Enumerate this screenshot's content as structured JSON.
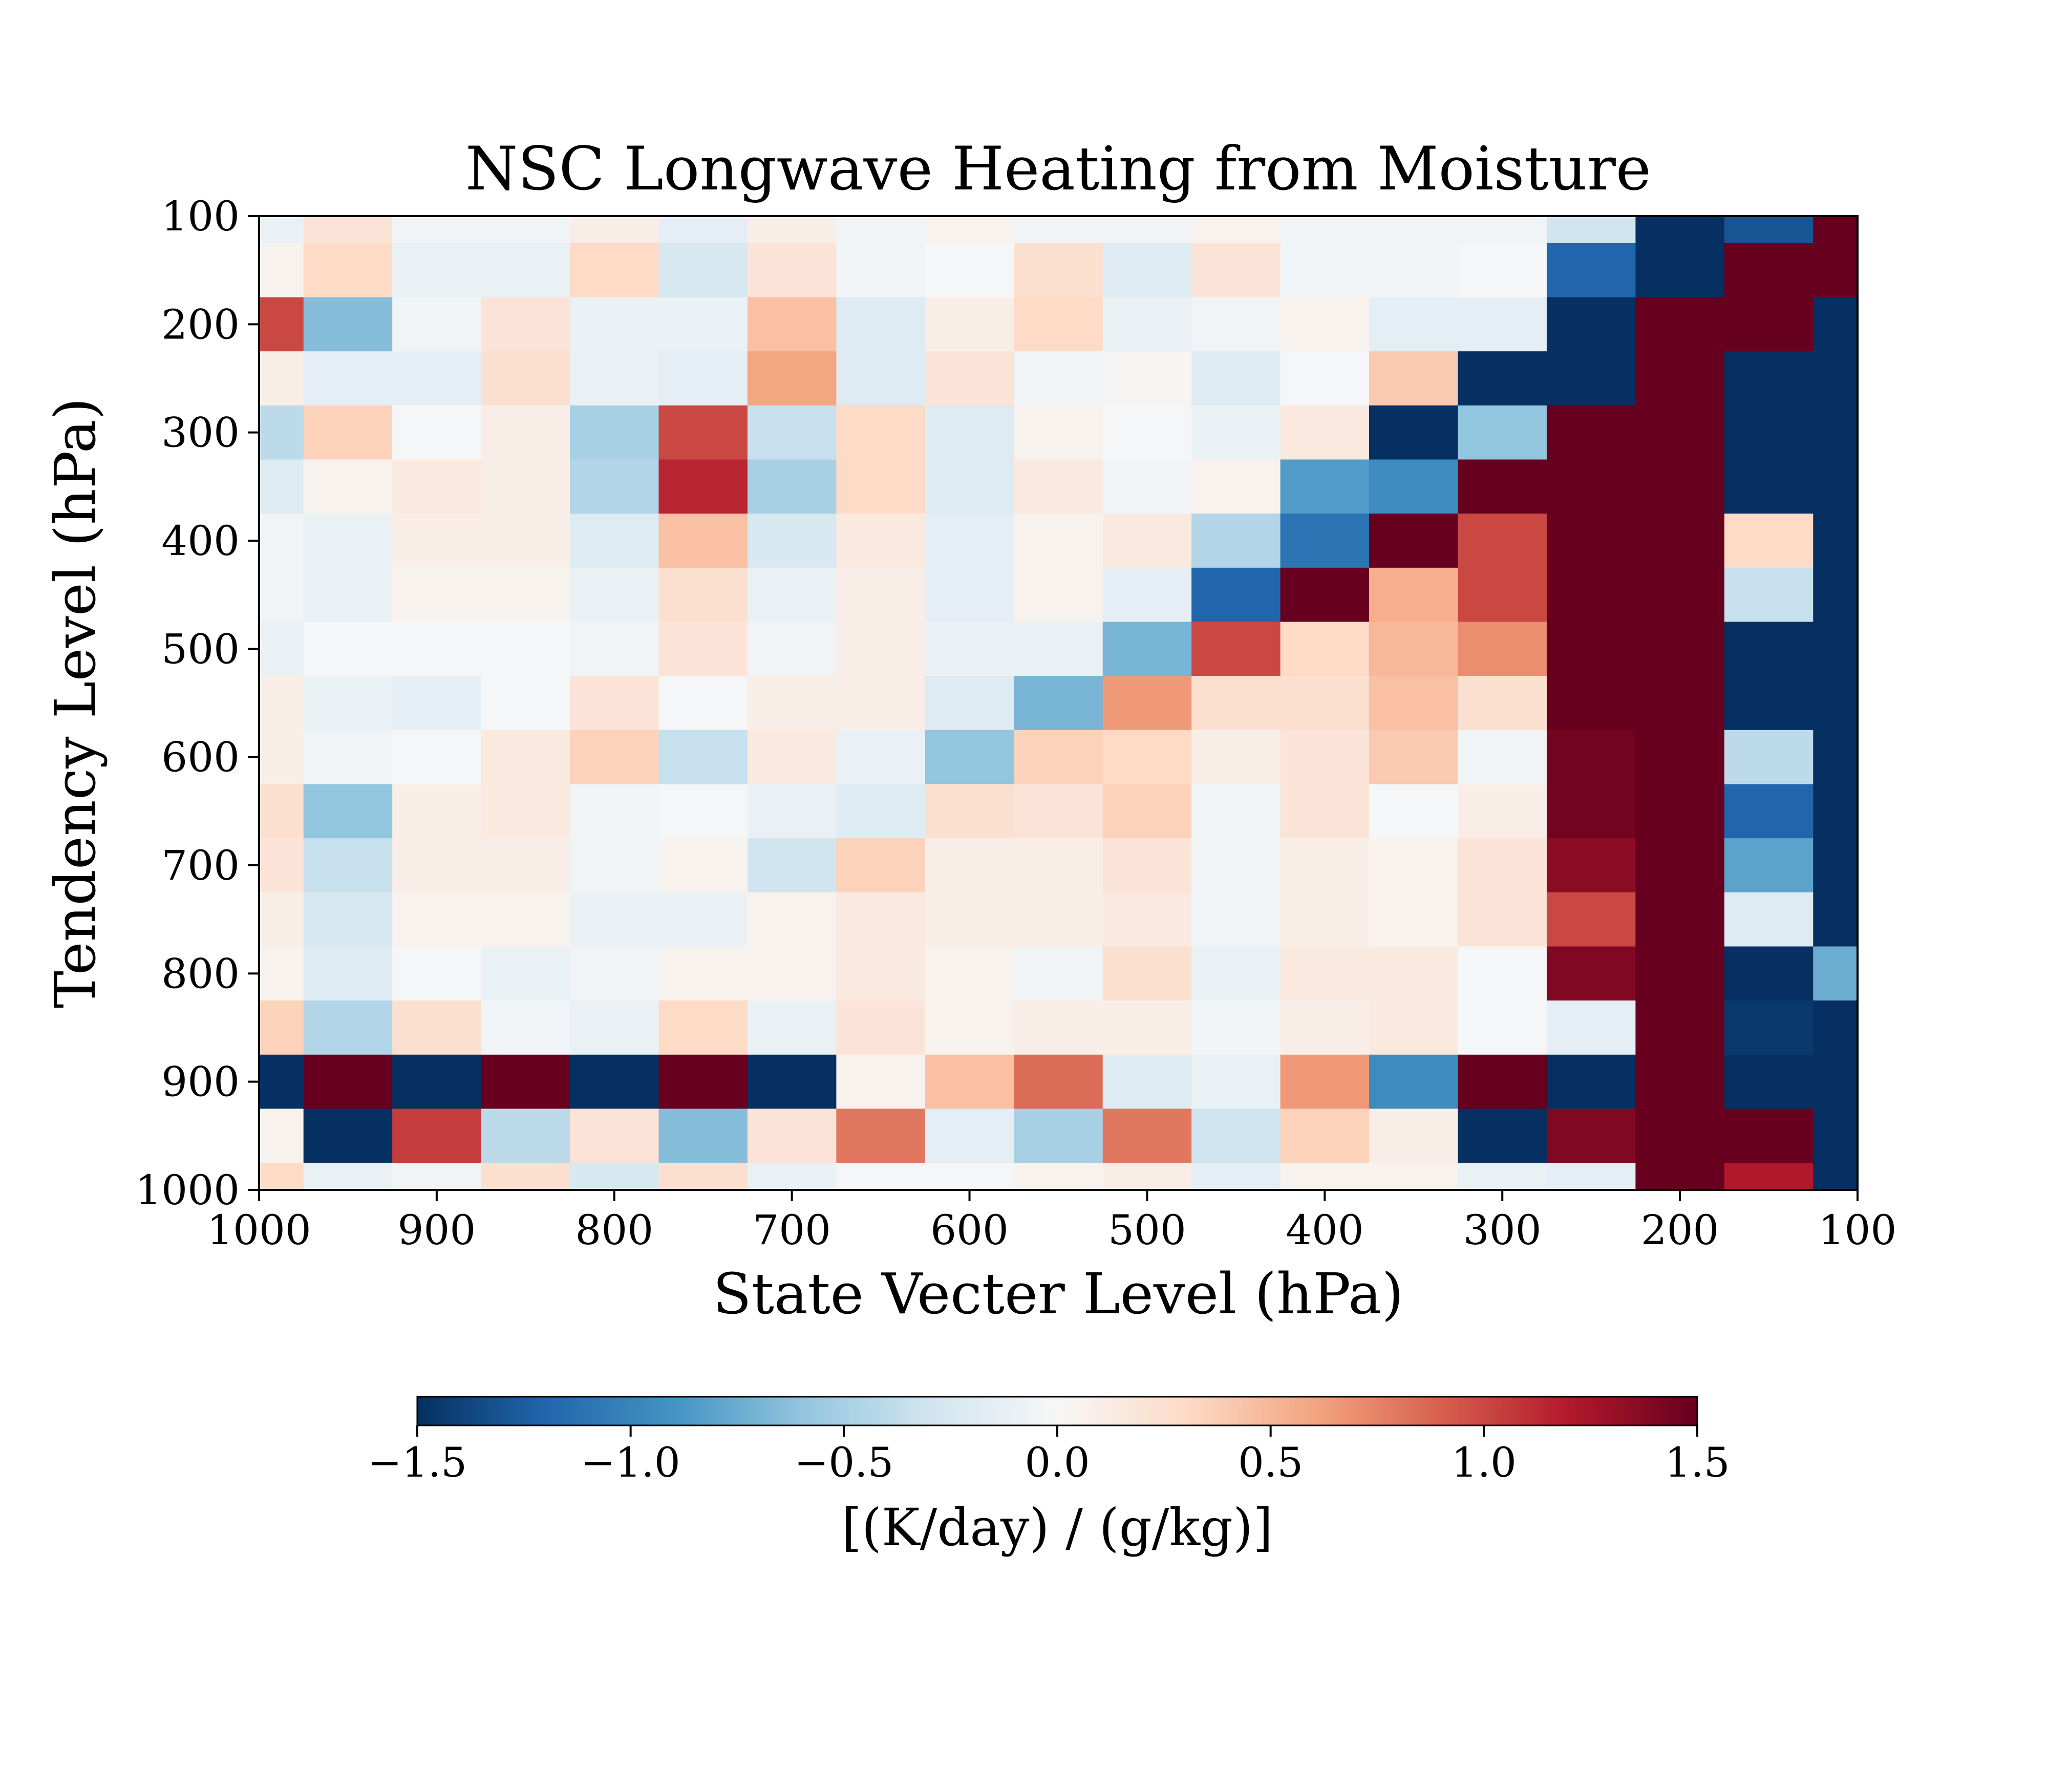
{
  "chart_data": {
    "type": "heatmap",
    "title": "NSC Longwave Heating from Moisture",
    "xlabel": "State Vecter Level (hPa)",
    "ylabel": "Tendency Level (hPa)",
    "x_ticks": [
      "1000",
      "900",
      "800",
      "700",
      "600",
      "500",
      "400",
      "300",
      "200",
      "100"
    ],
    "y_ticks": [
      "100",
      "200",
      "300",
      "400",
      "500",
      "600",
      "700",
      "800",
      "900",
      "1000"
    ],
    "xlim": [
      1000,
      100
    ],
    "ylim": [
      1000,
      100
    ],
    "colorbar": {
      "label": "[(K/day) / (g/kg)]",
      "range": [
        -1.5,
        1.5
      ],
      "ticks": [
        "−1.5",
        "−1.0",
        "−0.5",
        "0.0",
        "0.5",
        "1.0",
        "1.5"
      ],
      "colormap": "RdBu_r",
      "orientation": "horizontal"
    },
    "x_levels": [
      1000,
      950,
      900,
      850,
      800,
      750,
      700,
      650,
      600,
      550,
      500,
      450,
      400,
      350,
      300,
      250,
      200,
      150,
      100
    ],
    "y_levels": [
      100,
      150,
      200,
      250,
      300,
      350,
      400,
      450,
      500,
      550,
      600,
      650,
      700,
      750,
      800,
      850,
      900,
      950,
      1000
    ],
    "z": [
      [
        -0.1,
        0.2,
        -0.05,
        -0.05,
        0.1,
        -0.15,
        0.1,
        -0.05,
        0.05,
        -0.05,
        -0.05,
        0.05,
        -0.05,
        -0.05,
        -0.05,
        -0.3,
        -1.5,
        -1.3,
        1.5
      ],
      [
        0.05,
        0.3,
        -0.1,
        -0.1,
        0.3,
        -0.25,
        0.2,
        -0.05,
        -0.02,
        0.25,
        -0.2,
        0.2,
        -0.05,
        -0.05,
        -0.02,
        -1.2,
        -1.5,
        1.5,
        1.5
      ],
      [
        1.0,
        -0.65,
        -0.05,
        0.2,
        -0.1,
        -0.1,
        0.45,
        -0.2,
        0.1,
        0.3,
        -0.1,
        -0.05,
        0.05,
        -0.15,
        -0.15,
        -1.5,
        1.5,
        1.5,
        -1.5
      ],
      [
        0.1,
        -0.15,
        -0.15,
        0.25,
        -0.1,
        -0.15,
        0.6,
        -0.2,
        0.2,
        -0.05,
        0.02,
        -0.2,
        -0.02,
        0.4,
        -1.5,
        -1.5,
        1.5,
        -1.5,
        -1.5
      ],
      [
        -0.4,
        0.35,
        -0.02,
        0.1,
        -0.5,
        1.0,
        -0.35,
        0.3,
        -0.2,
        0.05,
        -0.02,
        -0.1,
        0.15,
        -1.5,
        -0.6,
        1.5,
        1.5,
        -1.5,
        -1.5
      ],
      [
        -0.2,
        0.05,
        0.15,
        0.1,
        -0.45,
        1.15,
        -0.5,
        0.3,
        -0.2,
        0.15,
        -0.05,
        0.05,
        -0.85,
        -0.95,
        1.5,
        1.5,
        1.5,
        -1.5,
        -1.5
      ],
      [
        -0.05,
        -0.1,
        0.1,
        0.1,
        -0.2,
        0.45,
        -0.25,
        0.15,
        -0.15,
        0.05,
        0.15,
        -0.45,
        -1.1,
        1.5,
        1.0,
        1.5,
        1.5,
        0.3,
        -1.5
      ],
      [
        -0.05,
        -0.1,
        0.05,
        0.05,
        -0.1,
        0.25,
        -0.1,
        0.1,
        -0.15,
        0.05,
        -0.15,
        -1.2,
        1.5,
        0.55,
        1.0,
        1.5,
        1.5,
        -0.35,
        -1.5
      ],
      [
        -0.1,
        -0.02,
        -0.02,
        -0.02,
        -0.05,
        0.2,
        -0.05,
        0.1,
        -0.1,
        -0.1,
        -0.7,
        1.0,
        0.3,
        0.5,
        0.7,
        1.5,
        1.5,
        -1.5,
        -1.5
      ],
      [
        0.1,
        -0.1,
        -0.15,
        -0.02,
        0.2,
        -0.02,
        0.1,
        0.1,
        -0.2,
        -0.7,
        0.65,
        0.25,
        0.25,
        0.45,
        0.25,
        1.5,
        1.5,
        -1.5,
        -1.5
      ],
      [
        0.1,
        -0.05,
        -0.02,
        0.15,
        0.35,
        -0.35,
        0.15,
        -0.1,
        -0.6,
        0.35,
        0.3,
        0.1,
        0.2,
        0.4,
        -0.05,
        1.45,
        1.5,
        -0.4,
        -1.5
      ],
      [
        0.25,
        -0.6,
        0.1,
        0.15,
        -0.05,
        -0.02,
        -0.1,
        -0.2,
        0.25,
        0.2,
        0.35,
        -0.05,
        0.2,
        -0.02,
        0.1,
        1.45,
        1.5,
        -1.2,
        -1.5
      ],
      [
        0.2,
        -0.35,
        0.1,
        0.1,
        -0.05,
        0.05,
        -0.3,
        0.35,
        0.1,
        0.1,
        0.2,
        -0.05,
        0.1,
        0.05,
        0.2,
        1.35,
        1.5,
        -0.8,
        -1.5
      ],
      [
        0.1,
        -0.25,
        0.05,
        0.05,
        -0.1,
        -0.1,
        0.05,
        0.15,
        0.1,
        0.1,
        0.15,
        -0.05,
        0.1,
        0.05,
        0.2,
        1.0,
        1.5,
        -0.2,
        -1.5
      ],
      [
        0.05,
        -0.2,
        -0.02,
        -0.1,
        -0.05,
        0.05,
        0.05,
        0.15,
        0.05,
        -0.05,
        0.25,
        -0.1,
        0.15,
        0.15,
        -0.02,
        1.4,
        1.5,
        -1.5,
        -0.75
      ],
      [
        0.35,
        -0.45,
        0.25,
        -0.05,
        -0.1,
        0.3,
        -0.1,
        0.2,
        0.05,
        0.1,
        0.1,
        -0.05,
        0.1,
        0.15,
        -0.02,
        -0.15,
        1.5,
        -1.45,
        -1.5
      ],
      [
        -1.5,
        1.5,
        -1.5,
        1.5,
        -1.5,
        1.5,
        -1.5,
        0.05,
        0.45,
        0.85,
        -0.2,
        -0.1,
        0.65,
        -0.95,
        1.5,
        -1.5,
        1.5,
        -1.5,
        -1.5
      ],
      [
        0.05,
        -1.5,
        1.05,
        -0.4,
        0.2,
        -0.65,
        0.2,
        0.8,
        -0.15,
        -0.5,
        0.8,
        -0.3,
        0.35,
        0.1,
        -1.5,
        1.4,
        1.5,
        1.5,
        -1.5
      ],
      [
        0.3,
        -0.1,
        -0.05,
        0.25,
        -0.25,
        0.25,
        -0.1,
        -0.02,
        -0.02,
        0.05,
        0.1,
        -0.15,
        0.05,
        0.05,
        -0.1,
        -0.15,
        1.5,
        1.2,
        -1.5
      ]
    ]
  }
}
